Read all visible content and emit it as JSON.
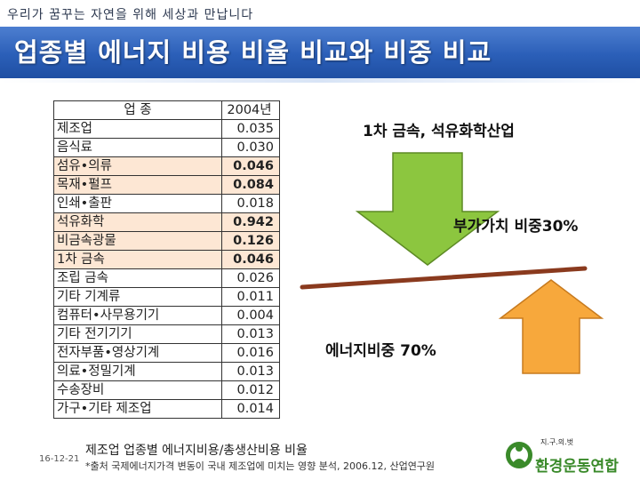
{
  "header": {
    "tagline": "우리가 꿈꾸는 자연을 위해 세상과 만납니다",
    "title": "업종별 에너지 비용 비율 비교와 비중 비교"
  },
  "table": {
    "columns": [
      "업 종",
      "2004년"
    ],
    "rows": [
      {
        "name": "제조업",
        "value": "0.035"
      },
      {
        "name": "음식료",
        "value": "0.030"
      },
      {
        "name": "섬유•의류",
        "value": "0.046",
        "highlight": true
      },
      {
        "name": "목재•펄프",
        "value": "0.084",
        "highlight": true
      },
      {
        "name": "인쇄•출판",
        "value": "0.018"
      },
      {
        "name": "석유화학",
        "value": "0.942",
        "highlight": true
      },
      {
        "name": "비금속광물",
        "value": "0.126",
        "highlight": true
      },
      {
        "name": "1차 금속",
        "value": "0.046",
        "highlight": true
      },
      {
        "name": "조립 금속",
        "value": "0.026"
      },
      {
        "name": "기타 기계류",
        "value": "0.011"
      },
      {
        "name": "컴퓨터•사무용기기",
        "value": "0.004"
      },
      {
        "name": "기타 전기기기",
        "value": "0.013"
      },
      {
        "name": "전자부품•영상기계",
        "value": "0.016"
      },
      {
        "name": "의료•정밀기계",
        "value": "0.013"
      },
      {
        "name": "수송장비",
        "value": "0.012"
      },
      {
        "name": "가구•기타 제조업",
        "value": "0.014"
      }
    ]
  },
  "diagram": {
    "label_industries": "1차 금속, 석유화학산업",
    "label_value_added": "부가가치 비중30%",
    "label_energy": "에너지비중 70%",
    "colors": {
      "down_arrow": "#8cc63f",
      "up_arrow": "#f7a83c",
      "beam": "#8a3a1e"
    }
  },
  "footer": {
    "caption": "제조업 업종별 에너지비용/총생산비용 비율",
    "source": "*출처 국제에너지가격 변동이 국내 제조업에 미치는 영향 분석, 2006.12, 산업연구원",
    "date": "16-12-21",
    "logo_small": "지.구.의.벗",
    "logo_text": "환경운동연합"
  }
}
